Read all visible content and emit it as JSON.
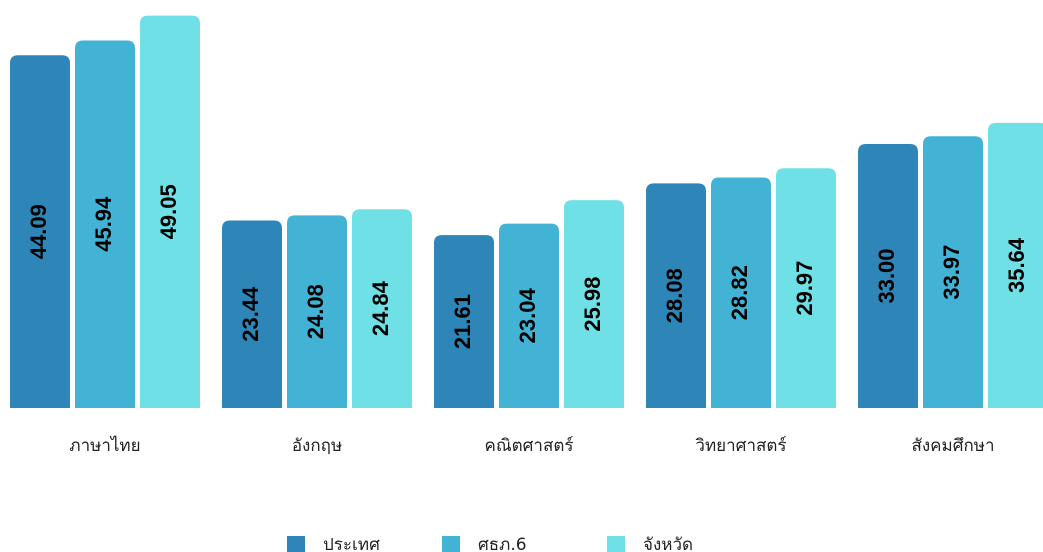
{
  "chart_data": {
    "type": "bar",
    "categories": [
      "ภาษาไทย",
      "อังกฤษ",
      "คณิตศาสตร์",
      "วิทยาศาสตร์",
      "สังคมศึกษา"
    ],
    "series": [
      {
        "name": "ประเทศ",
        "color": "#2e86b8",
        "values": [
          44.09,
          23.44,
          21.61,
          28.08,
          33.0
        ],
        "value_labels": [
          "44.09",
          "23.44",
          "21.61",
          "28.08",
          "33.00"
        ]
      },
      {
        "name": "ศธภ.6",
        "color": "#42b3d5",
        "values": [
          45.94,
          24.08,
          23.04,
          28.82,
          33.97
        ],
        "value_labels": [
          "45.94",
          "24.08",
          "23.04",
          "28.82",
          "33.97"
        ]
      },
      {
        "name": "จังหวัด",
        "color": "#6fe0e5",
        "values": [
          49.05,
          24.84,
          25.98,
          29.97,
          35.64
        ],
        "value_labels": [
          "49.05",
          "24.84",
          "25.98",
          "29.97",
          "35.64"
        ]
      }
    ],
    "ylim": [
      0,
      51
    ]
  }
}
